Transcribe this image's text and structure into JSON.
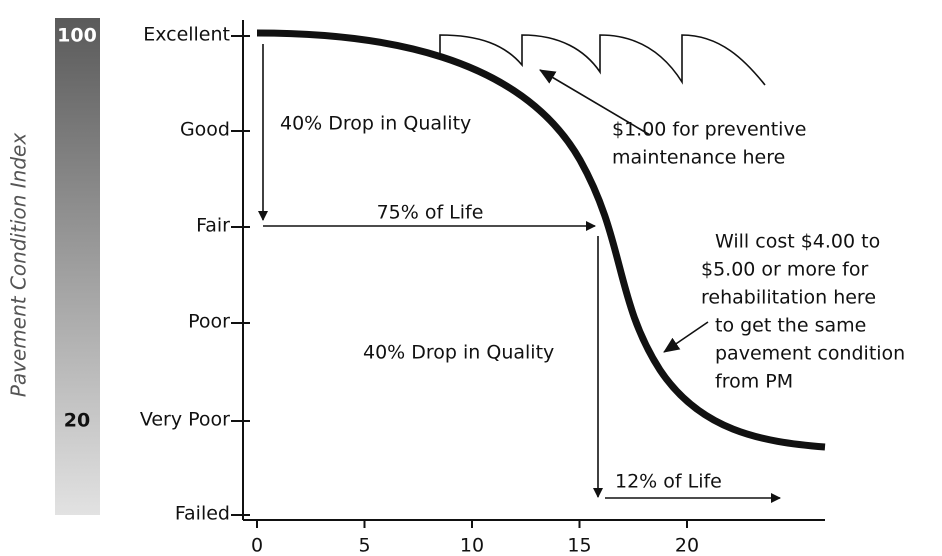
{
  "y_axis": {
    "title": "Pavement Condition Index",
    "bar_top": "100",
    "bar_low": "20",
    "levels": [
      "Excellent",
      "Good",
      "Fair",
      "Poor",
      "Very Poor",
      "Failed"
    ]
  },
  "x_axis": {
    "ticks": [
      "0",
      "5",
      "10",
      "15",
      "20"
    ]
  },
  "annotations": {
    "drop_1": "40% Drop in Quality",
    "life_1": "75% of Life",
    "preventive": [
      "$1.00 for preventive",
      "maintenance here"
    ],
    "rehab": [
      "Will cost $4.00 to",
      "$5.00 or more for",
      "rehabilitation here",
      "to get the same",
      "pavement condition",
      "from PM"
    ],
    "drop_2": "40% Drop in Quality",
    "life_2": "12% of Life"
  }
}
